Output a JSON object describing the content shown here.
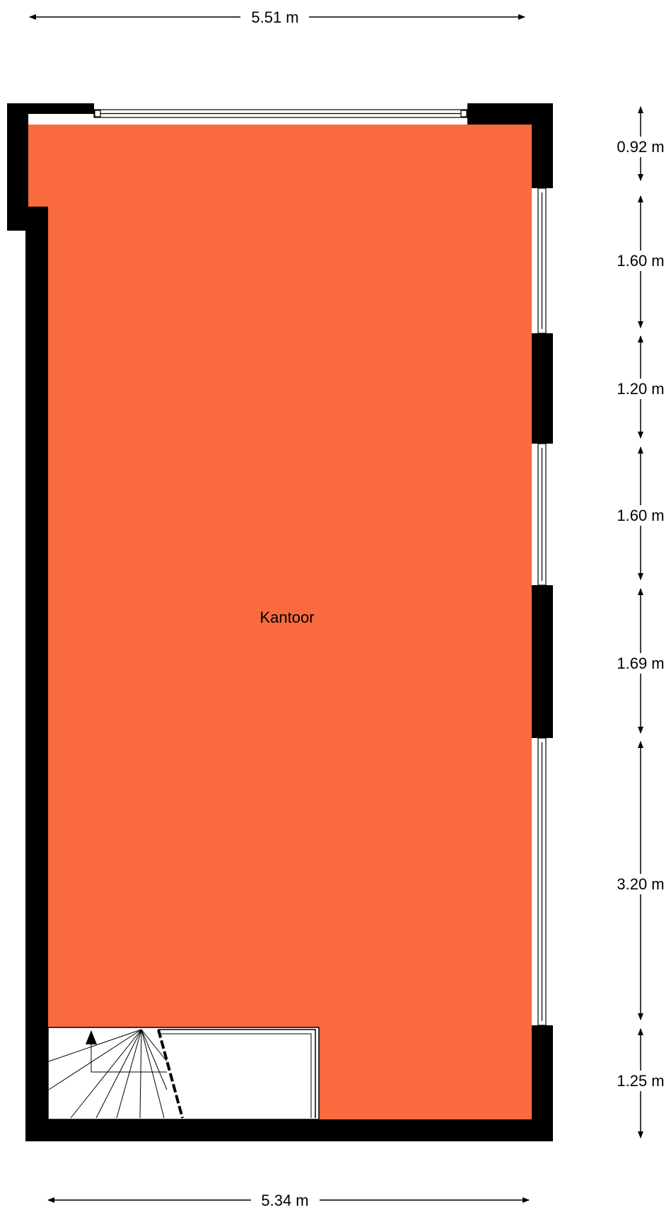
{
  "floor_plan": {
    "room_label": "Kantoor",
    "colors": {
      "floor": "#F96A3E",
      "wall": "#000000",
      "dimension_line": "#000000",
      "window": "#ffffff"
    },
    "dimensions": {
      "top_width": "5.51 m",
      "bottom_width": "5.34 m",
      "right": [
        "0.92 m",
        "1.60 m",
        "1.20 m",
        "1.60 m",
        "1.69 m",
        "3.20 m",
        "1.25 m"
      ]
    },
    "icons": {
      "staircase": "staircase-icon",
      "stair_arrow": "arrow-up-icon"
    }
  }
}
